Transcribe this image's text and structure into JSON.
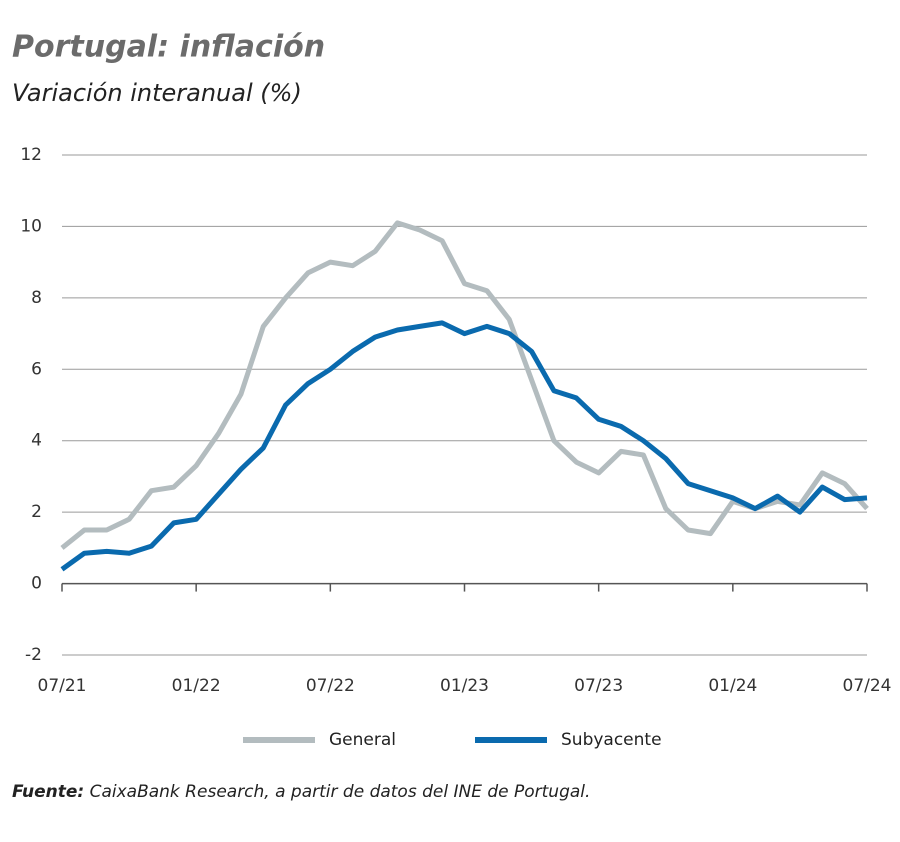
{
  "chart_data": {
    "type": "line",
    "title": "Portugal: inflación",
    "subtitle": "Variación interanual (%)",
    "source_label": "Fuente:",
    "source": "CaixaBank Research, a partir de datos del INE de Portugal.",
    "categories": [
      "07/21",
      null,
      null,
      null,
      null,
      null,
      "01/22",
      null,
      null,
      null,
      null,
      null,
      "07/22",
      null,
      null,
      null,
      null,
      null,
      "01/23",
      null,
      null,
      null,
      null,
      null,
      "07/23",
      null,
      null,
      null,
      null,
      null,
      "01/24",
      null,
      null,
      null,
      null,
      null,
      "07/24"
    ],
    "series": [
      {
        "name": "General",
        "color": "#b3bcbf",
        "values": [
          1.0,
          1.5,
          1.5,
          1.8,
          2.6,
          2.7,
          3.3,
          4.2,
          5.3,
          7.2,
          8.0,
          8.7,
          9.0,
          8.9,
          9.3,
          10.1,
          9.9,
          9.6,
          8.4,
          8.2,
          7.4,
          5.7,
          4.0,
          3.4,
          3.1,
          3.7,
          3.6,
          2.1,
          1.5,
          1.4,
          2.3,
          2.1,
          2.3,
          2.2,
          3.1,
          2.8,
          2.1
        ]
      },
      {
        "name": "Subyacente",
        "color": "#0a6aae",
        "values": [
          0.4,
          0.85,
          0.9,
          0.85,
          1.05,
          1.7,
          1.8,
          2.5,
          3.2,
          3.8,
          5.0,
          5.6,
          6.0,
          6.5,
          6.9,
          7.1,
          7.2,
          7.3,
          7.0,
          7.2,
          7.0,
          6.5,
          5.4,
          5.2,
          4.6,
          4.4,
          4.0,
          3.5,
          2.8,
          2.6,
          2.4,
          2.1,
          2.45,
          2.0,
          2.7,
          2.35,
          2.4
        ]
      }
    ],
    "ylim": [
      -2,
      12
    ],
    "yticks": [
      -2,
      0,
      2,
      4,
      6,
      8,
      10,
      12
    ],
    "grid": true
  }
}
